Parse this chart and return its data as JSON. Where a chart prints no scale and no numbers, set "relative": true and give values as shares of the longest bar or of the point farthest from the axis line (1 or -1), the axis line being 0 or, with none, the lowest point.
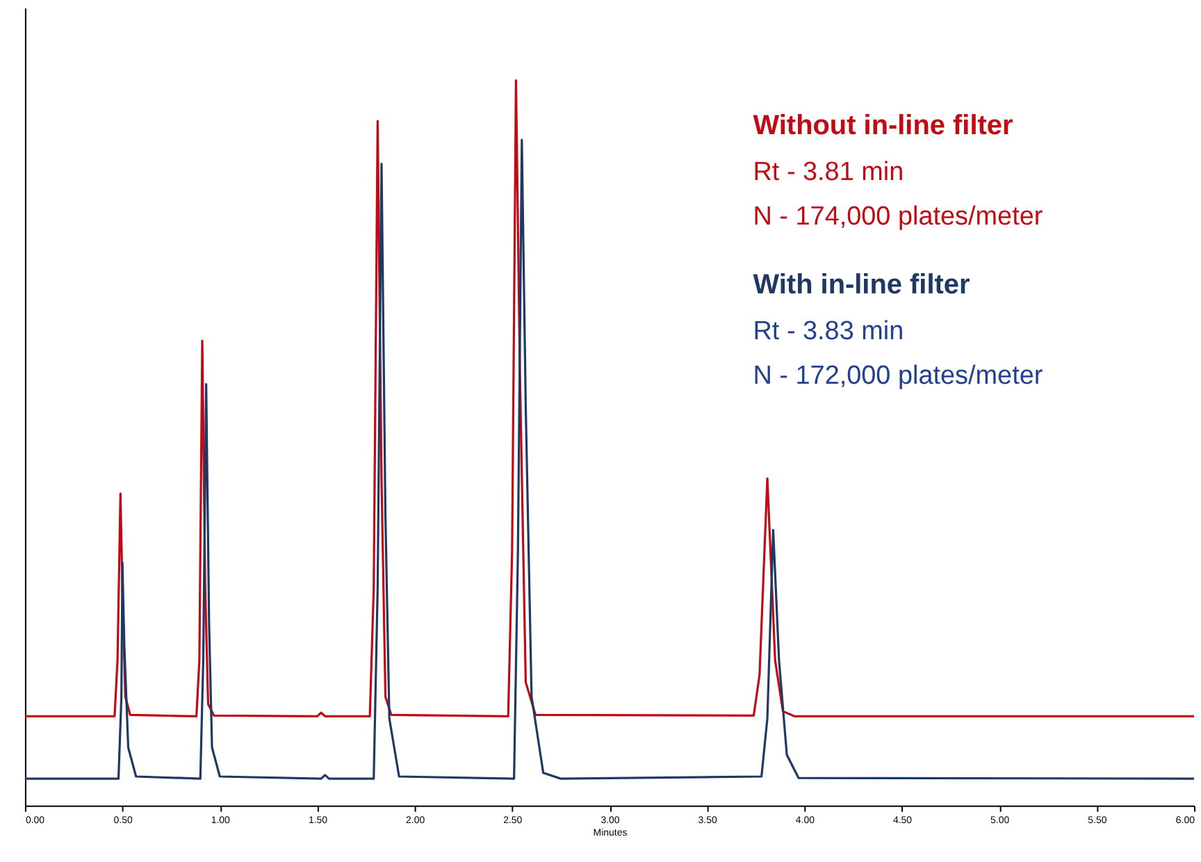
{
  "chart_data": {
    "type": "line",
    "relative": true,
    "xlabel": "Minutes",
    "xlim": [
      0,
      6
    ],
    "xticks": [
      {
        "value": 0,
        "label": "0.00"
      },
      {
        "value": 0.5,
        "label": "0.50"
      },
      {
        "value": 1,
        "label": "1.00"
      },
      {
        "value": 1.5,
        "label": "1.50"
      },
      {
        "value": 2,
        "label": "2.00"
      },
      {
        "value": 2.5,
        "label": "2.50"
      },
      {
        "value": 3,
        "label": "3.00"
      },
      {
        "value": 3.5,
        "label": "3.50"
      },
      {
        "value": 4,
        "label": "4.00"
      },
      {
        "value": 4.5,
        "label": "4.50"
      },
      {
        "value": 5,
        "label": "5.00"
      },
      {
        "value": 5.5,
        "label": "5.50"
      },
      {
        "value": 6,
        "label": "6.00"
      }
    ],
    "tick_labels": "x",
    "grid": false,
    "legend": "top right",
    "marker": "none",
    "line_style": "solid",
    "series": [
      {
        "name": "Without in-line filter",
        "color": "#c00a14",
        "x": [
          0,
          0.46,
          0.475,
          0.49,
          0.5,
          0.515,
          0.54,
          0.88,
          0.895,
          0.91,
          0.925,
          0.94,
          0.97,
          1.5,
          1.52,
          1.54,
          1.77,
          1.79,
          1.81,
          1.83,
          1.85,
          1.88,
          2.48,
          2.5,
          2.52,
          2.54,
          2.57,
          2.62,
          3.74,
          3.77,
          3.81,
          3.85,
          3.89,
          3.95,
          6
        ],
        "values": [
          0.123,
          0.123,
          0.2,
          0.43,
          0.3,
          0.15,
          0.125,
          0.123,
          0.2,
          0.641,
          0.3,
          0.14,
          0.124,
          0.123,
          0.128,
          0.123,
          0.123,
          0.3,
          0.944,
          0.45,
          0.15,
          0.125,
          0.123,
          0.35,
          1,
          0.6,
          0.17,
          0.125,
          0.124,
          0.18,
          0.451,
          0.2,
          0.13,
          0.123,
          0.123
        ]
      },
      {
        "name": "With in-line filter",
        "color": "#1f3864",
        "x": [
          0,
          0.48,
          0.495,
          0.5,
          0.51,
          0.53,
          0.57,
          0.9,
          0.915,
          0.93,
          0.945,
          0.96,
          1.0,
          1.52,
          1.54,
          1.56,
          1.79,
          1.81,
          1.83,
          1.85,
          1.87,
          1.92,
          2.51,
          2.53,
          2.55,
          2.57,
          2.6,
          2.66,
          2.75,
          3.78,
          3.81,
          3.84,
          3.87,
          3.91,
          3.97,
          6
        ],
        "values": [
          0.037,
          0.037,
          0.15,
          0.335,
          0.22,
          0.08,
          0.04,
          0.037,
          0.2,
          0.581,
          0.25,
          0.08,
          0.04,
          0.037,
          0.042,
          0.037,
          0.037,
          0.3,
          0.885,
          0.4,
          0.12,
          0.04,
          0.037,
          0.35,
          0.918,
          0.55,
          0.15,
          0.045,
          0.037,
          0.04,
          0.12,
          0.38,
          0.2,
          0.07,
          0.038,
          0.037
        ]
      }
    ],
    "annotations": [
      "Rt - 3.81 min",
      "N - 174,000 plates/meter",
      "Rt - 3.83 min",
      "N - 172,000 plates/meter"
    ]
  }
}
